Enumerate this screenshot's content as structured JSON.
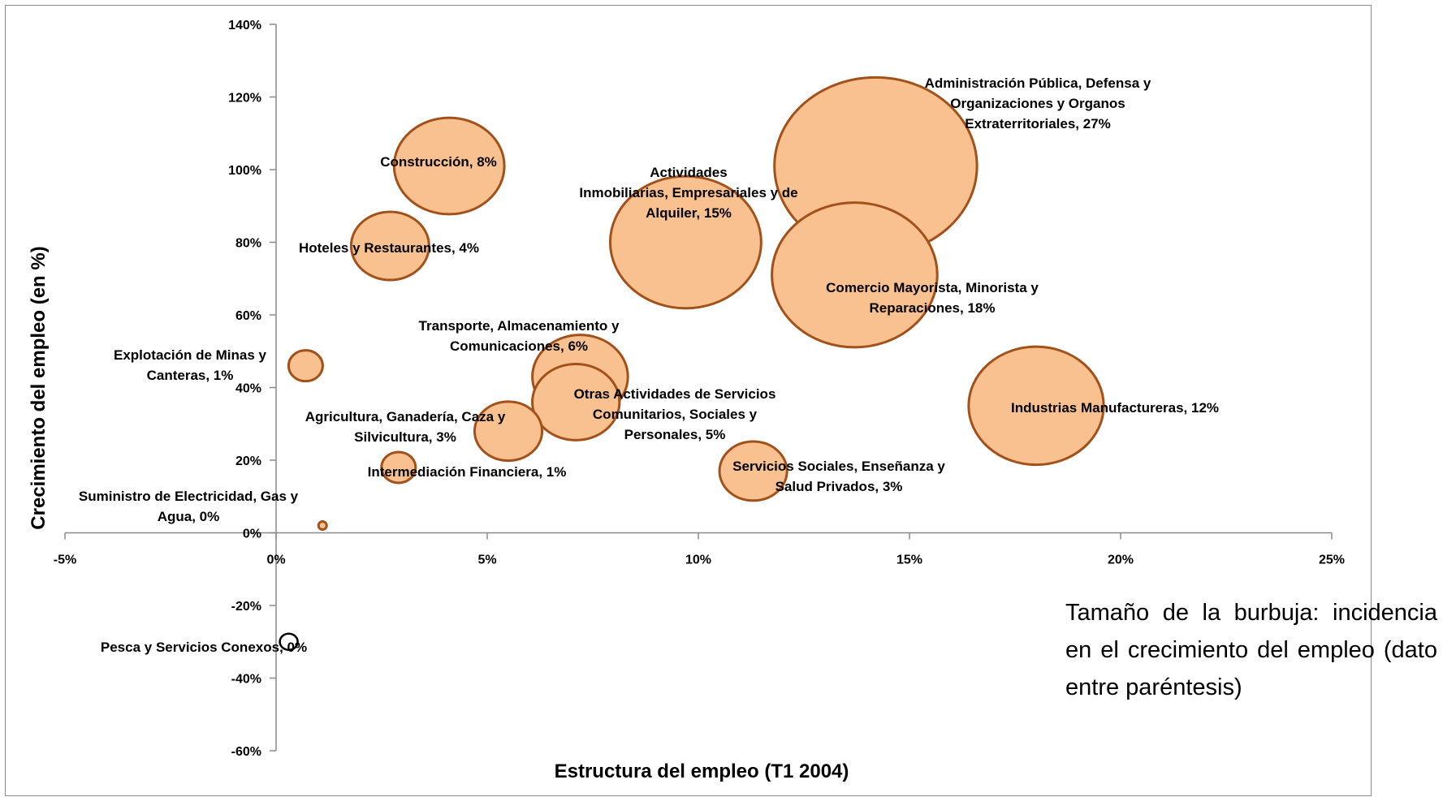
{
  "chart_data": {
    "type": "bubble",
    "xlabel": "Estructura del empleo (T1 2004)",
    "ylabel": "Crecimiento del empleo (en %)",
    "xlim": [
      -0.05,
      0.25
    ],
    "ylim": [
      -0.6,
      1.4
    ],
    "x_ticks": [
      "-5%",
      "0%",
      "5%",
      "10%",
      "15%",
      "20%",
      "25%"
    ],
    "y_ticks": [
      "140%",
      "120%",
      "100%",
      "80%",
      "60%",
      "40%",
      "20%",
      "0%",
      "-20%",
      "-40%",
      "-60%"
    ],
    "bubble_fill": "#f9c090",
    "bubble_stroke": "#a2511a",
    "points": [
      {
        "label": "Administración Pública, Defensa y Organizaciones y Organos Extraterritoriales, 27%",
        "x": 0.142,
        "y": 1.01,
        "size": 27
      },
      {
        "label": "Comercio Mayorista, Minorista y Reparaciones, 18%",
        "x": 0.137,
        "y": 0.71,
        "size": 18
      },
      {
        "label": "Actividades Inmobiliarias, Empresariales y de Alquiler, 15%",
        "x": 0.097,
        "y": 0.8,
        "size": 15
      },
      {
        "label": "Industrias Manufactureras, 12%",
        "x": 0.18,
        "y": 0.35,
        "size": 12
      },
      {
        "label": "Construcción, 8%",
        "x": 0.041,
        "y": 1.01,
        "size": 8
      },
      {
        "label": "Transporte, Almacenamiento y Comunicaciones, 6%",
        "x": 0.072,
        "y": 0.43,
        "size": 6
      },
      {
        "label": "Otras Actividades de Servicios Comunitarios, Sociales y Personales, 5%",
        "x": 0.071,
        "y": 0.36,
        "size": 5
      },
      {
        "label": "Hoteles y Restaurantes, 4%",
        "x": 0.027,
        "y": 0.79,
        "size": 4
      },
      {
        "label": "Agricultura, Ganadería, Caza y Silvicultura, 3%",
        "x": 0.055,
        "y": 0.28,
        "size": 3
      },
      {
        "label": "Servicios Sociales, Enseñanza y Salud Privados, 3%",
        "x": 0.113,
        "y": 0.17,
        "size": 3
      },
      {
        "label": "Explotación de Minas y Canteras, 1%",
        "x": 0.007,
        "y": 0.46,
        "size": 1
      },
      {
        "label": "Intermediación Financiera, 1%",
        "x": 0.029,
        "y": 0.18,
        "size": 1
      },
      {
        "label": "Suministro de Electricidad, Gas y Agua, 0%",
        "x": 0.011,
        "y": 0.02,
        "size": 0
      },
      {
        "label": "Pesca y Servicios Conexos, 0%",
        "x": 0.003,
        "y": -0.3,
        "size": 0,
        "outline_only": true
      }
    ]
  },
  "note": "Tamaño de la burbuja: incidencia en el crecimiento del empleo (dato entre paréntesis)"
}
